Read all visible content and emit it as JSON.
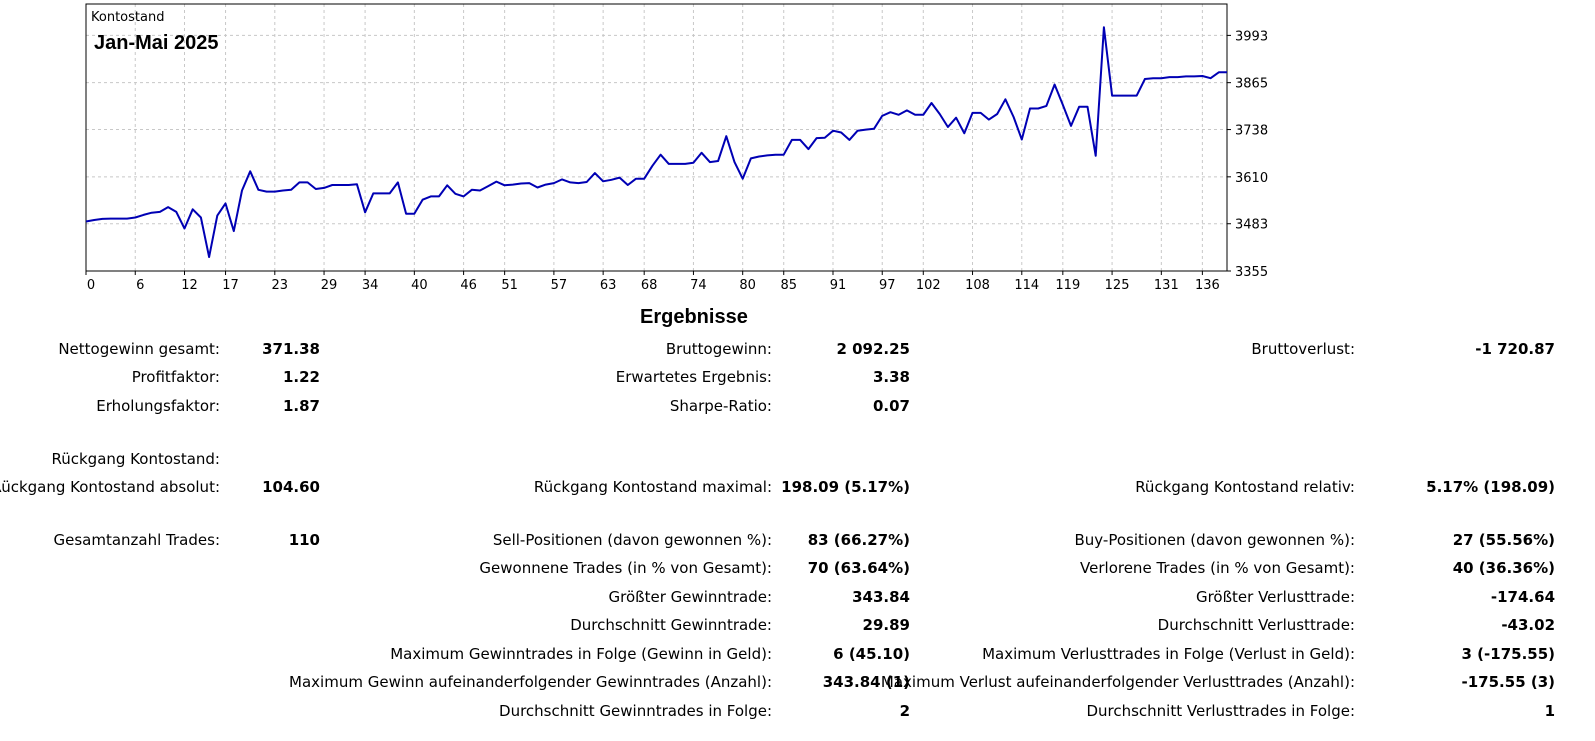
{
  "chart_data": {
    "type": "line",
    "series_label": "Kontostand",
    "title": "Jan-Mai 2025",
    "xlim": [
      0,
      139
    ],
    "ylim": [
      3355,
      4078
    ],
    "x_ticks": [
      0,
      6,
      12,
      17,
      23,
      29,
      34,
      40,
      46,
      51,
      57,
      63,
      68,
      74,
      80,
      85,
      91,
      97,
      102,
      108,
      114,
      119,
      125,
      131,
      136
    ],
    "y_ticks": [
      3993,
      3865,
      3738,
      3610,
      3483,
      3355
    ],
    "grid": true,
    "color": "#0000b4",
    "x": [
      0,
      1,
      2,
      3,
      4,
      5,
      6,
      7,
      8,
      9,
      10,
      11,
      12,
      13,
      14,
      15,
      16,
      17,
      18,
      19,
      20,
      21,
      22,
      23,
      24,
      25,
      26,
      27,
      28,
      29,
      30,
      31,
      32,
      33,
      34,
      35,
      36,
      37,
      38,
      39,
      40,
      41,
      42,
      43,
      44,
      45,
      46,
      47,
      48,
      49,
      50,
      51,
      52,
      53,
      54,
      55,
      56,
      57,
      58,
      59,
      60,
      61,
      62,
      63,
      64,
      65,
      66,
      67,
      68,
      69,
      70,
      71,
      72,
      73,
      74,
      75,
      76,
      77,
      78,
      79,
      80,
      81,
      82,
      83,
      84,
      85,
      86,
      87,
      88,
      89,
      90,
      91,
      92,
      93,
      94,
      95,
      96,
      97,
      98,
      99,
      100,
      101,
      102,
      103,
      104,
      105,
      106,
      107,
      108,
      109,
      110,
      111,
      112,
      113,
      114,
      115,
      116,
      117,
      118,
      119,
      120,
      121,
      122,
      123,
      124,
      125,
      126,
      127,
      128,
      129,
      130,
      131,
      132,
      133,
      134,
      135,
      136,
      137,
      138,
      139
    ],
    "y": [
      3489,
      3493,
      3496,
      3497,
      3497,
      3497,
      3500,
      3507,
      3513,
      3515,
      3528,
      3515,
      3470,
      3522,
      3500,
      3393,
      3505,
      3538,
      3463,
      3573,
      3625,
      3575,
      3570,
      3570,
      3573,
      3575,
      3595,
      3595,
      3577,
      3580,
      3588,
      3588,
      3588,
      3590,
      3514,
      3565,
      3565,
      3565,
      3595,
      3510,
      3510,
      3548,
      3557,
      3557,
      3587,
      3564,
      3557,
      3575,
      3573,
      3585,
      3597,
      3587,
      3589,
      3592,
      3593,
      3581,
      3589,
      3593,
      3603,
      3595,
      3593,
      3596,
      3620,
      3598,
      3602,
      3608,
      3588,
      3605,
      3605,
      3640,
      3670,
      3645,
      3645,
      3645,
      3648,
      3675,
      3650,
      3653,
      3720,
      3650,
      3605,
      3660,
      3665,
      3668,
      3670,
      3670,
      3710,
      3710,
      3685,
      3715,
      3716,
      3735,
      3730,
      3710,
      3735,
      3738,
      3740,
      3775,
      3785,
      3778,
      3790,
      3778,
      3778,
      3810,
      3780,
      3745,
      3770,
      3728,
      3783,
      3783,
      3765,
      3780,
      3820,
      3772,
      3711,
      3795,
      3795,
      3802,
      3860,
      3805,
      3748,
      3800,
      3800,
      3667,
      4015,
      3830,
      3830,
      3830,
      3830,
      3875,
      3877,
      3877,
      3880,
      3880,
      3882,
      3882,
      3883,
      3877,
      3893,
      3893
    ]
  },
  "results": {
    "title": "Ergebnisse",
    "rows": [
      {
        "cells": [
          {
            "label": "Nettogewinn gesamt:",
            "value": "371.38"
          },
          {
            "label": "Bruttogewinn:",
            "value": "2 092.25"
          },
          {
            "label": "Bruttoverlust:",
            "value": "-1 720.87"
          }
        ]
      },
      {
        "cells": [
          {
            "label": "Profitfaktor:",
            "value": "1.22"
          },
          {
            "label": "Erwartetes Ergebnis:",
            "value": "3.38"
          },
          {
            "label": "",
            "value": ""
          }
        ]
      },
      {
        "cells": [
          {
            "label": "Erholungsfaktor:",
            "value": "1.87"
          },
          {
            "label": "Sharpe-Ratio:",
            "value": "0.07"
          },
          {
            "label": "",
            "value": ""
          }
        ]
      },
      {
        "cells": [
          {
            "label": "Rückgang Kontostand:",
            "value": ""
          },
          {
            "label": "",
            "value": ""
          },
          {
            "label": "",
            "value": ""
          }
        ]
      },
      {
        "cells": [
          {
            "label": "Rückgang Kontostand absolut:",
            "value": "104.60"
          },
          {
            "label": "Rückgang Kontostand maximal:",
            "value": "198.09 (5.17%)"
          },
          {
            "label": "Rückgang Kontostand relativ:",
            "value": "5.17% (198.09)"
          }
        ]
      },
      {
        "cells": [
          {
            "label": "Gesamtanzahl Trades:",
            "value": "110"
          },
          {
            "label": "Sell-Positionen (davon gewonnen %):",
            "value": "83 (66.27%)"
          },
          {
            "label": "Buy-Positionen (davon gewonnen %):",
            "value": "27 (55.56%)"
          }
        ]
      },
      {
        "cells": [
          {
            "label": "",
            "value": ""
          },
          {
            "label": "Gewonnene Trades (in % von Gesamt):",
            "value": "70 (63.64%)"
          },
          {
            "label": "Verlorene Trades (in % von Gesamt):",
            "value": "40 (36.36%)"
          }
        ]
      },
      {
        "cells": [
          {
            "label": "",
            "value": ""
          },
          {
            "label": "Größter Gewinntrade:",
            "value": "343.84"
          },
          {
            "label": "Größter Verlusttrade:",
            "value": "-174.64"
          }
        ]
      },
      {
        "cells": [
          {
            "label": "",
            "value": ""
          },
          {
            "label": "Durchschnitt Gewinntrade:",
            "value": "29.89"
          },
          {
            "label": "Durchschnitt Verlusttrade:",
            "value": "-43.02"
          }
        ]
      },
      {
        "cells": [
          {
            "label": "",
            "value": ""
          },
          {
            "label": "Maximum Gewinntrades in Folge (Gewinn in Geld):",
            "value": "6 (45.10)"
          },
          {
            "label": "Maximum Verlusttrades in Folge (Verlust in Geld):",
            "value": "3 (-175.55)"
          }
        ]
      },
      {
        "cells": [
          {
            "label": "",
            "value": ""
          },
          {
            "label": "Maximum Gewinn aufeinanderfolgender Gewinntrades (Anzahl):",
            "value": "343.84 (1)"
          },
          {
            "label": "Maximum Verlust aufeinanderfolgender Verlusttrades (Anzahl):",
            "value": "-175.55 (3)"
          }
        ]
      },
      {
        "cells": [
          {
            "label": "",
            "value": ""
          },
          {
            "label": "Durchschnitt Gewinntrades in Folge:",
            "value": "2"
          },
          {
            "label": "Durchschnitt Verlusttrades in Folge:",
            "value": "1"
          }
        ]
      }
    ]
  }
}
